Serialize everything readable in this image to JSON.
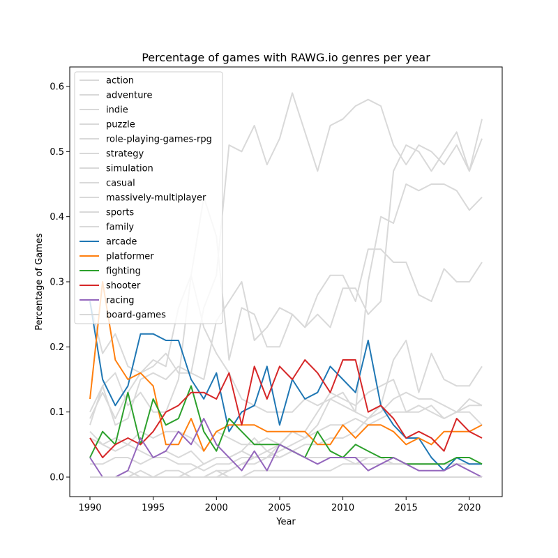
{
  "chart_data": {
    "type": "line",
    "title": "Percentage of games with RAWG.io genres per year",
    "xlabel": "Year",
    "ylabel": "Percentage of Games",
    "xlim": [
      1988.4,
      2022.6
    ],
    "ylim": [
      -0.03,
      0.63
    ],
    "xticks": [
      1990,
      1995,
      2000,
      2005,
      2010,
      2015,
      2020
    ],
    "yticks": [
      0.0,
      0.1,
      0.2,
      0.3,
      0.4,
      0.5,
      0.6
    ],
    "grid": false,
    "legend_position": "top-left",
    "x": [
      1990,
      1991,
      1992,
      1993,
      1994,
      1995,
      1996,
      1997,
      1998,
      1999,
      2000,
      2001,
      2002,
      2003,
      2004,
      2005,
      2006,
      2007,
      2008,
      2009,
      2010,
      2011,
      2012,
      2013,
      2014,
      2015,
      2016,
      2017,
      2018,
      2019,
      2020,
      2021
    ],
    "series": [
      {
        "name": "action",
        "color": "#d9d9d9",
        "values": [
          0.27,
          0.19,
          0.22,
          0.17,
          0.16,
          0.17,
          0.19,
          0.16,
          0.16,
          0.26,
          0.31,
          0.51,
          0.5,
          0.54,
          0.48,
          0.52,
          0.59,
          0.53,
          0.47,
          0.54,
          0.55,
          0.57,
          0.58,
          0.57,
          0.51,
          0.48,
          0.51,
          0.5,
          0.48,
          0.51,
          0.47,
          0.55
        ]
      },
      {
        "name": "adventure",
        "color": "#d9d9d9",
        "values": [
          0.1,
          0.14,
          0.08,
          0.09,
          0.15,
          0.16,
          0.15,
          0.17,
          0.16,
          0.15,
          0.24,
          0.27,
          0.3,
          0.21,
          0.23,
          0.26,
          0.25,
          0.23,
          0.25,
          0.23,
          0.29,
          0.29,
          0.25,
          0.27,
          0.47,
          0.51,
          0.5,
          0.47,
          0.5,
          0.53,
          0.47,
          0.52
        ]
      },
      {
        "name": "indie",
        "color": "#d9d9d9",
        "values": [
          0.0,
          0.0,
          0.0,
          0.0,
          0.0,
          0.0,
          0.0,
          0.0,
          0.0,
          0.0,
          0.01,
          0.01,
          0.02,
          0.02,
          0.03,
          0.04,
          0.05,
          0.06,
          0.08,
          0.12,
          0.13,
          0.1,
          0.3,
          0.4,
          0.39,
          0.45,
          0.44,
          0.45,
          0.45,
          0.44,
          0.41,
          0.43
        ]
      },
      {
        "name": "puzzle",
        "color": "#d9d9d9",
        "values": [
          0.07,
          0.05,
          0.06,
          0.05,
          0.04,
          0.03,
          0.04,
          0.03,
          0.04,
          0.02,
          0.03,
          0.03,
          0.04,
          0.03,
          0.04,
          0.05,
          0.04,
          0.05,
          0.05,
          0.06,
          0.06,
          0.07,
          0.09,
          0.11,
          0.18,
          0.21,
          0.13,
          0.19,
          0.15,
          0.14,
          0.14,
          0.17
        ]
      },
      {
        "name": "role-playing-games-rpg",
        "color": "#d9d9d9",
        "values": [
          0.09,
          0.13,
          0.09,
          0.13,
          0.16,
          0.18,
          0.17,
          0.26,
          0.31,
          0.43,
          0.37,
          0.18,
          0.26,
          0.25,
          0.2,
          0.2,
          0.25,
          0.23,
          0.28,
          0.31,
          0.31,
          0.27,
          0.35,
          0.35,
          0.33,
          0.33,
          0.28,
          0.27,
          0.32,
          0.3,
          0.3,
          0.33
        ]
      },
      {
        "name": "strategy",
        "color": "#d9d9d9",
        "values": [
          0.08,
          0.14,
          0.16,
          0.11,
          0.13,
          0.1,
          0.1,
          0.15,
          0.31,
          0.23,
          0.19,
          0.16,
          0.12,
          0.11,
          0.1,
          0.1,
          0.1,
          0.12,
          0.11,
          0.12,
          0.11,
          0.1,
          0.09,
          0.1,
          0.12,
          0.13,
          0.12,
          0.12,
          0.11,
          0.1,
          0.11,
          0.11
        ]
      },
      {
        "name": "simulation",
        "color": "#d9d9d9",
        "values": [
          0.06,
          0.05,
          0.04,
          0.05,
          0.07,
          0.06,
          0.07,
          0.07,
          0.06,
          0.04,
          0.07,
          0.06,
          0.05,
          0.05,
          0.06,
          0.05,
          0.07,
          0.06,
          0.07,
          0.08,
          0.08,
          0.09,
          0.08,
          0.09,
          0.1,
          0.1,
          0.1,
          0.11,
          0.09,
          0.1,
          0.12,
          0.11
        ]
      },
      {
        "name": "casual",
        "color": "#d9d9d9",
        "values": [
          0.0,
          0.0,
          0.0,
          0.01,
          0.0,
          0.0,
          0.0,
          0.0,
          0.0,
          0.0,
          0.0,
          0.01,
          0.02,
          0.03,
          0.03,
          0.05,
          0.07,
          0.07,
          0.1,
          0.13,
          0.12,
          0.11,
          0.13,
          0.14,
          0.15,
          0.1,
          0.11,
          0.1,
          0.09,
          0.1,
          0.1,
          0.08
        ]
      },
      {
        "name": "massively-multiplayer",
        "color": "#d9d9d9",
        "values": [
          0.0,
          0.0,
          0.0,
          0.0,
          0.0,
          0.0,
          0.0,
          0.0,
          0.01,
          0.02,
          0.03,
          0.03,
          0.04,
          0.06,
          0.04,
          0.03,
          0.04,
          0.03,
          0.03,
          0.03,
          0.03,
          0.02,
          0.03,
          0.03,
          0.02,
          0.02,
          0.02,
          0.02,
          0.02,
          0.02,
          0.02,
          0.02
        ]
      },
      {
        "name": "sports",
        "color": "#d9d9d9",
        "values": [
          0.02,
          0.02,
          0.03,
          0.03,
          0.02,
          0.03,
          0.03,
          0.02,
          0.02,
          0.01,
          0.02,
          0.02,
          0.03,
          0.03,
          0.03,
          0.03,
          0.04,
          0.03,
          0.03,
          0.03,
          0.03,
          0.03,
          0.03,
          0.03,
          0.02,
          0.02,
          0.02,
          0.02,
          0.02,
          0.02,
          0.02,
          0.02
        ]
      },
      {
        "name": "family",
        "color": "#d9d9d9",
        "values": [
          0.0,
          0.0,
          0.0,
          0.0,
          0.01,
          0.0,
          0.01,
          0.01,
          0.0,
          0.0,
          0.01,
          0.0,
          0.0,
          0.01,
          0.01,
          0.01,
          0.01,
          0.01,
          0.01,
          0.01,
          0.02,
          0.02,
          0.02,
          0.02,
          0.02,
          0.02,
          0.02,
          0.02,
          0.02,
          0.02,
          0.02,
          0.02
        ]
      },
      {
        "name": "arcade",
        "color": "#1f77b4",
        "values": [
          0.27,
          0.15,
          0.11,
          0.14,
          0.22,
          0.22,
          0.21,
          0.21,
          0.15,
          0.12,
          0.16,
          0.07,
          0.1,
          0.11,
          0.17,
          0.08,
          0.15,
          0.12,
          0.13,
          0.17,
          0.15,
          0.13,
          0.21,
          0.11,
          0.08,
          0.06,
          0.06,
          0.03,
          0.01,
          0.03,
          0.02,
          0.02
        ]
      },
      {
        "name": "platformer",
        "color": "#ff7f0e",
        "values": [
          0.12,
          0.3,
          0.18,
          0.15,
          0.16,
          0.14,
          0.05,
          0.05,
          0.09,
          0.04,
          0.07,
          0.08,
          0.08,
          0.08,
          0.07,
          0.07,
          0.07,
          0.07,
          0.05,
          0.05,
          0.08,
          0.06,
          0.08,
          0.08,
          0.07,
          0.05,
          0.06,
          0.05,
          0.07,
          0.07,
          0.07,
          0.08
        ]
      },
      {
        "name": "fighting",
        "color": "#2ca02c",
        "values": [
          0.03,
          0.07,
          0.05,
          0.13,
          0.05,
          0.12,
          0.08,
          0.09,
          0.14,
          0.07,
          0.04,
          0.09,
          0.07,
          0.05,
          0.05,
          0.05,
          0.04,
          0.03,
          0.07,
          0.04,
          0.03,
          0.05,
          0.04,
          0.03,
          0.03,
          0.02,
          0.02,
          0.02,
          0.02,
          0.03,
          0.03,
          0.02
        ]
      },
      {
        "name": "shooter",
        "color": "#d62728",
        "values": [
          0.06,
          0.03,
          0.05,
          0.06,
          0.05,
          0.07,
          0.1,
          0.11,
          0.13,
          0.13,
          0.12,
          0.16,
          0.08,
          0.17,
          0.12,
          0.17,
          0.15,
          0.18,
          0.16,
          0.13,
          0.18,
          0.18,
          0.1,
          0.11,
          0.09,
          0.06,
          0.07,
          0.06,
          0.04,
          0.09,
          0.07,
          0.06
        ]
      },
      {
        "name": "racing",
        "color": "#9467bd",
        "values": [
          0.03,
          0.0,
          0.0,
          0.01,
          0.06,
          0.03,
          0.04,
          0.07,
          0.05,
          0.09,
          0.05,
          0.03,
          0.01,
          0.04,
          0.01,
          0.05,
          0.04,
          0.03,
          0.02,
          0.03,
          0.03,
          0.03,
          0.01,
          0.02,
          0.03,
          0.02,
          0.01,
          0.01,
          0.01,
          0.02,
          0.01,
          0.0
        ]
      },
      {
        "name": "board-games",
        "color": "#d9d9d9",
        "values": [
          0.0,
          0.0,
          0.0,
          0.0,
          0.0,
          0.0,
          0.0,
          0.0,
          0.0,
          0.0,
          0.0,
          0.0,
          0.0,
          0.0,
          0.0,
          0.0,
          0.0,
          0.0,
          0.0,
          0.0,
          0.0,
          0.0,
          0.0,
          0.0,
          0.0,
          0.0,
          0.0,
          0.0,
          0.0,
          0.0,
          0.0,
          0.0
        ]
      }
    ]
  }
}
